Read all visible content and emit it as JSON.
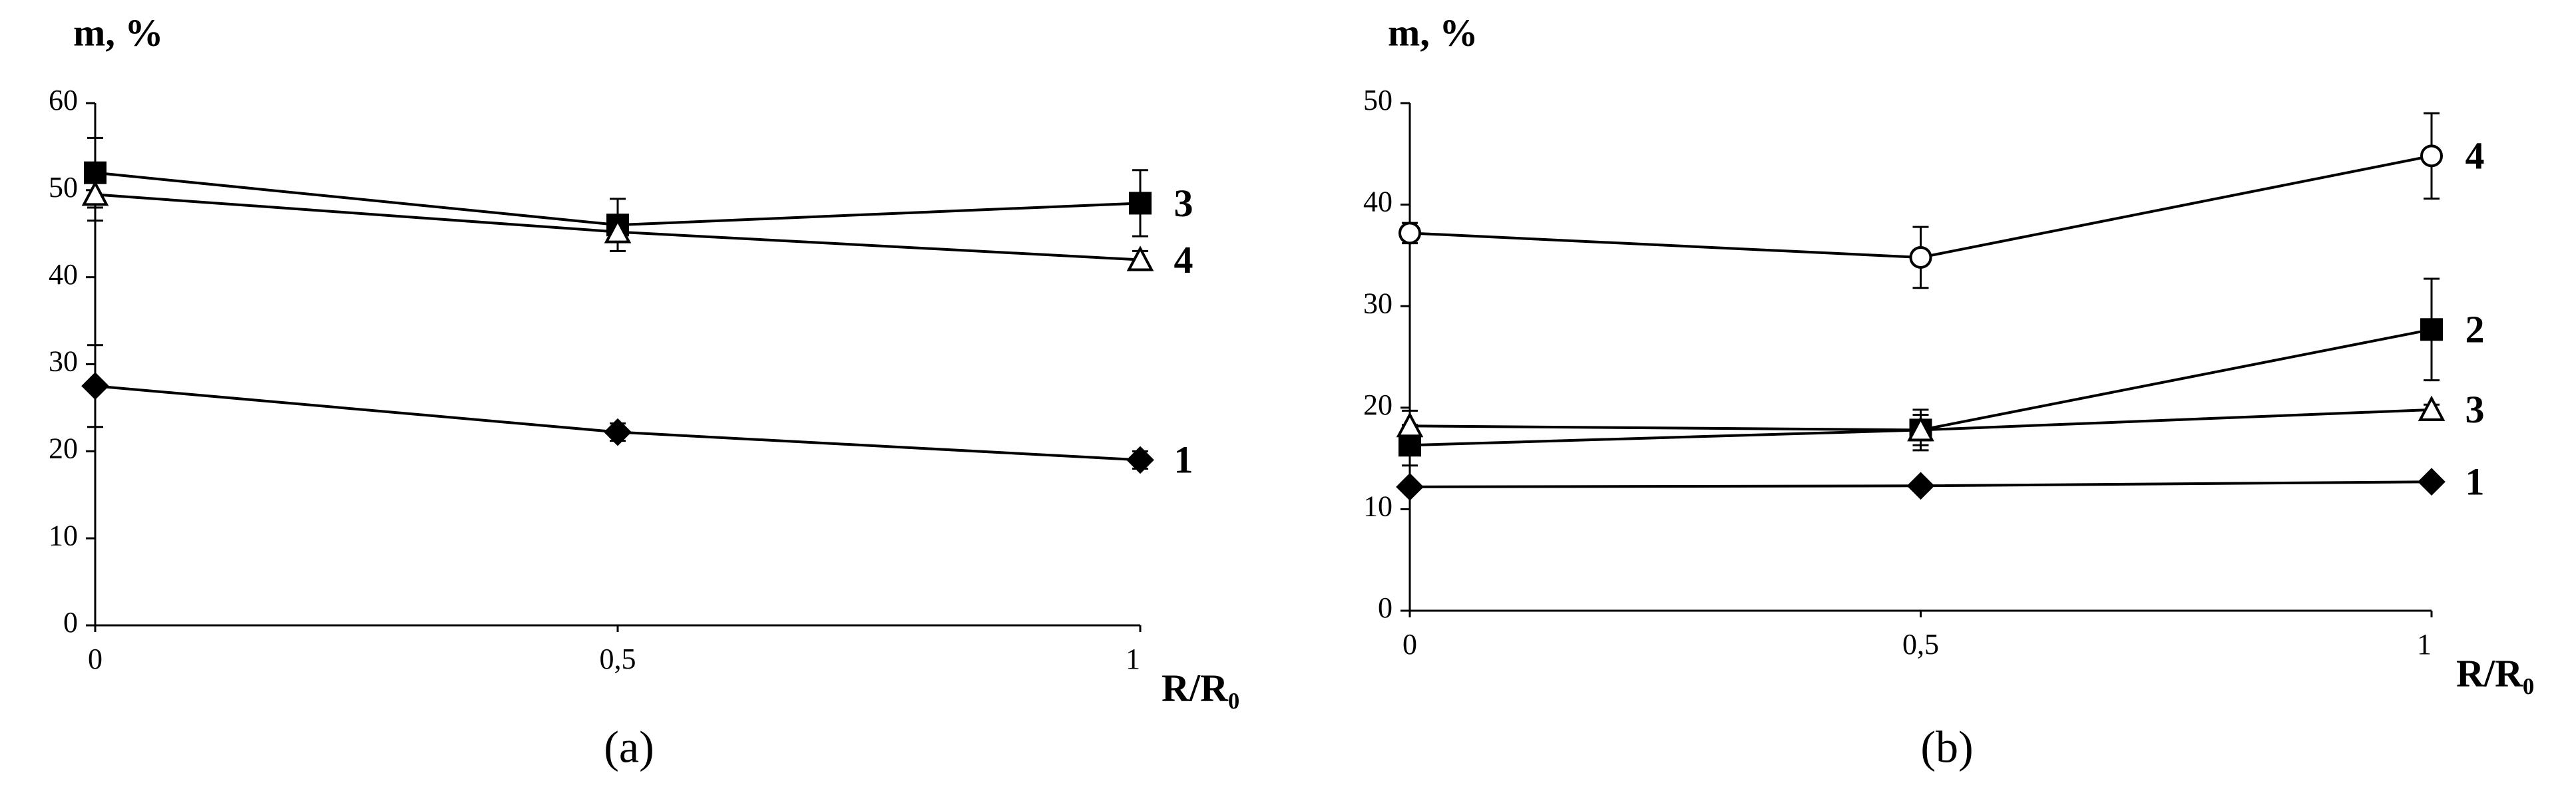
{
  "chart_data": [
    {
      "type": "line",
      "caption": "(a)",
      "y_label": "m, %",
      "x_label": "R/R₀",
      "xlim": [
        0,
        1
      ],
      "xticks": [
        0,
        {
          "value": 0.5,
          "label": "0,5"
        },
        1
      ],
      "ylim": [
        0,
        60
      ],
      "yticks": [
        0,
        10,
        20,
        30,
        40,
        50,
        60
      ],
      "x": [
        0,
        0.5,
        1
      ],
      "series": [
        {
          "name": "1",
          "color": "#000000",
          "marker": "diamond",
          "filled": true,
          "values": [
            27.5,
            22.2,
            19
          ],
          "errors": [
            4.7,
            1,
            1
          ]
        },
        {
          "name": "3",
          "color": "#000000",
          "marker": "square",
          "filled": true,
          "values": [
            52,
            46,
            48.5
          ],
          "errors": [
            4,
            3,
            3.8
          ]
        },
        {
          "name": "4",
          "color": "#000000",
          "marker": "triangle",
          "filled": false,
          "values": [
            49.5,
            45.2,
            42
          ],
          "errors": [
            3,
            1,
            1
          ]
        }
      ]
    },
    {
      "type": "line",
      "caption": "(b)",
      "y_label": "m, %",
      "x_label": "R/R₀",
      "xlim": [
        0,
        1
      ],
      "xticks": [
        0,
        {
          "value": 0.5,
          "label": "0,5"
        },
        1
      ],
      "ylim": [
        0,
        50
      ],
      "yticks": [
        0,
        10,
        20,
        30,
        40,
        50
      ],
      "x": [
        0,
        0.5,
        1
      ],
      "series": [
        {
          "name": "4",
          "color": "#000000",
          "marker": "circle",
          "filled": false,
          "values": [
            37.2,
            34.8,
            44.8
          ],
          "errors": [
            1,
            3,
            4.2
          ]
        },
        {
          "name": "2",
          "color": "#000000",
          "marker": "square",
          "filled": true,
          "values": [
            16.3,
            17.8,
            27.7
          ],
          "errors": [
            2,
            1.5,
            5
          ]
        },
        {
          "name": "3",
          "color": "#000000",
          "marker": "triangle",
          "filled": false,
          "values": [
            18.2,
            17.8,
            19.8
          ],
          "errors": [
            1.5,
            2,
            0.5
          ]
        },
        {
          "name": "1",
          "color": "#000000",
          "marker": "diamond",
          "filled": true,
          "values": [
            12.2,
            12.3,
            12.7
          ],
          "errors": [
            0.3,
            0.3,
            0.3
          ]
        }
      ]
    }
  ]
}
